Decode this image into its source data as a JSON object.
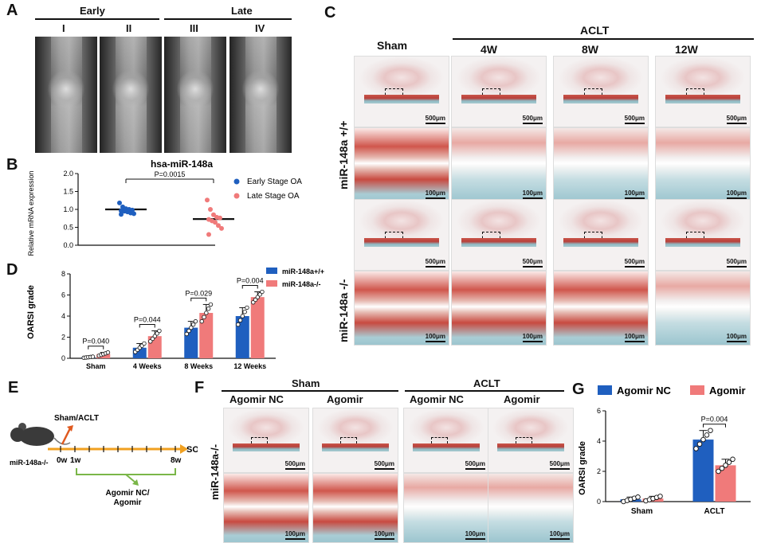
{
  "panels": {
    "A": "A",
    "B": "B",
    "C": "C",
    "D": "D",
    "E": "E",
    "F": "F",
    "G": "G"
  },
  "panelA": {
    "early": "Early",
    "late": "Late",
    "stages": [
      "I",
      "II",
      "III",
      "IV"
    ]
  },
  "panelB": {
    "title": "hsa-miR-148a",
    "pvalue": "P=0.0015",
    "ylabel": "Relative mRNA expression",
    "legend": [
      "Early Stage OA",
      "Late Stage OA"
    ]
  },
  "panelC": {
    "sham": "Sham",
    "aclt": "ACLT",
    "times": [
      "4W",
      "8W",
      "12W"
    ],
    "row1": "miR-148a +/+",
    "row2": "miR-148a -/-",
    "scale500": "500μm",
    "scale100": "100μm"
  },
  "panelD": {
    "ylabel": "OARSI grade",
    "legend": [
      "miR-148a+/+",
      "miR-148a-/-"
    ],
    "pvalues": [
      "P=0.040",
      "P=0.044",
      "P=0.029",
      "P=0.004"
    ]
  },
  "panelE": {
    "sham_aclt": "Sham/ACLT",
    "so": "SO",
    "mouse": "miR-148a-/-",
    "t0": "0w",
    "t1": "1w",
    "t8": "8w",
    "agomir": "Agomir NC/\nAgomir"
  },
  "panelF": {
    "sham": "Sham",
    "aclt": "ACLT",
    "cols": [
      "Agomir  NC",
      "Agomir",
      "Agomir  NC",
      "Agomir"
    ],
    "row": "miR-148a-/-",
    "scale500": "500μm",
    "scale100": "100μm"
  },
  "panelG": {
    "ylabel": "OARSI grade",
    "legend": [
      "Agomir NC",
      "Agomir"
    ],
    "pvalue": "P=0.004"
  },
  "colors": {
    "blue": "#1f5fbf",
    "red": "#f07a7a"
  },
  "chart_data": [
    {
      "type": "scatter",
      "title": "hsa-miR-148a",
      "ylabel": "Relative mRNA expression",
      "ylim": [
        0,
        2.0
      ],
      "yticks": [
        "0.0",
        "0.5",
        "1.0",
        "1.5",
        "2.0"
      ],
      "series": [
        {
          "name": "Early Stage OA",
          "color": "#1f5fbf",
          "mean": 1.0,
          "values": [
            1.18,
            1.07,
            1.02,
            1.0,
            0.98,
            0.96,
            0.95,
            0.93,
            0.9,
            0.88,
            0.86
          ]
        },
        {
          "name": "Late Stage OA",
          "color": "#f07a7a",
          "mean": 0.73,
          "values": [
            1.26,
            1.0,
            0.85,
            0.78,
            0.76,
            0.72,
            0.68,
            0.64,
            0.55,
            0.47,
            0.3
          ]
        }
      ]
    },
    {
      "type": "bar",
      "ylabel": "OARSI grade",
      "ylim": [
        0,
        8
      ],
      "yticks": [
        "0",
        "2",
        "4",
        "6",
        "8"
      ],
      "categories": [
        "Sham",
        "4 Weeks",
        "8 Weeks",
        "12 Weeks"
      ],
      "series": [
        {
          "name": "miR-148a+/+",
          "color": "#1f5fbf",
          "values": [
            0.1,
            1.0,
            2.9,
            4.0
          ],
          "err": [
            0.05,
            0.4,
            0.6,
            0.8
          ]
        },
        {
          "name": "miR-148a-/-",
          "color": "#f07a7a",
          "values": [
            0.4,
            2.1,
            4.3,
            5.8
          ],
          "err": [
            0.15,
            0.5,
            0.8,
            0.5
          ]
        }
      ]
    },
    {
      "type": "bar",
      "ylabel": "OARSI grade",
      "ylim": [
        0,
        6
      ],
      "yticks": [
        "0",
        "2",
        "4",
        "6"
      ],
      "categories": [
        "Sham",
        "ACLT"
      ],
      "series": [
        {
          "name": "Agomir NC",
          "color": "#1f5fbf",
          "values": [
            0.15,
            4.1
          ],
          "err": [
            0.15,
            0.6
          ]
        },
        {
          "name": "Agomir",
          "color": "#f07a7a",
          "values": [
            0.2,
            2.4
          ],
          "err": [
            0.15,
            0.4
          ]
        }
      ]
    }
  ]
}
